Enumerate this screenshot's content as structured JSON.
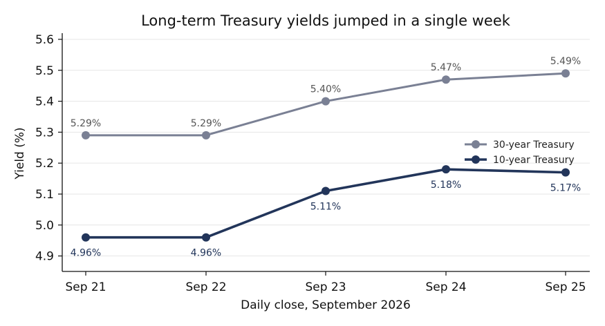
{
  "chart_data": {
    "type": "line",
    "title": "Long-term Treasury yields jumped in a single week",
    "xlabel": "Daily close, September 2026",
    "ylabel": "Yield (%)",
    "categories": [
      "Sep 21",
      "Sep 22",
      "Sep 23",
      "Sep 24",
      "Sep 25"
    ],
    "ylim": [
      4.85,
      5.62
    ],
    "yticks": [
      "4.9",
      "5.0",
      "5.1",
      "5.2",
      "5.3",
      "5.4",
      "5.5",
      "5.6"
    ],
    "grid": "horizontal",
    "legend_position": "right",
    "series": [
      {
        "name": "30-year Treasury",
        "color": "#7a8094",
        "values": [
          5.29,
          5.29,
          5.4,
          5.47,
          5.49
        ],
        "labels": [
          "5.29%",
          "5.29%",
          "5.40%",
          "5.47%",
          "5.49%"
        ],
        "label_position": "above"
      },
      {
        "name": "10-year Treasury",
        "color": "#22355a",
        "values": [
          4.96,
          4.96,
          5.11,
          5.18,
          5.17
        ],
        "labels": [
          "4.96%",
          "4.96%",
          "5.11%",
          "5.18%",
          "5.17%"
        ],
        "label_position": "below"
      }
    ]
  }
}
